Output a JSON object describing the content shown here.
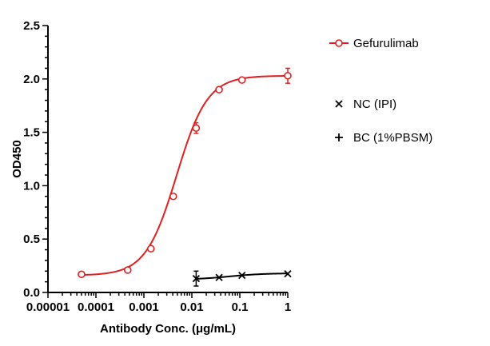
{
  "chart_data": {
    "type": "line",
    "xlabel": "Antibody Conc. (μg/mL)",
    "ylabel": "OD450",
    "x_scale": "log",
    "xlim": [
      1e-05,
      1
    ],
    "ylim": [
      0,
      2.5
    ],
    "x_ticks": [
      {
        "value": 1e-05,
        "label": "0.00001"
      },
      {
        "value": 0.0001,
        "label": "0.0001"
      },
      {
        "value": 0.001,
        "label": "0.001"
      },
      {
        "value": 0.01,
        "label": "0.01"
      },
      {
        "value": 0.1,
        "label": "0.1"
      },
      {
        "value": 1,
        "label": "1"
      }
    ],
    "y_ticks": [
      {
        "value": 0,
        "label": "0.0"
      },
      {
        "value": 0.5,
        "label": "0.5"
      },
      {
        "value": 1,
        "label": "1.0"
      },
      {
        "value": 1.5,
        "label": "1.5"
      },
      {
        "value": 2,
        "label": "2.0"
      },
      {
        "value": 2.5,
        "label": "2.5"
      }
    ],
    "grid": false,
    "legend_position": "right",
    "series": [
      {
        "name": "Gefurulimab",
        "color": "#e02020",
        "marker": "open-circle",
        "points": [
          {
            "x": 5e-05,
            "y": 0.17,
            "err": 0
          },
          {
            "x": 0.00046,
            "y": 0.21,
            "err": 0
          },
          {
            "x": 0.0014,
            "y": 0.41,
            "err": 0
          },
          {
            "x": 0.0041,
            "y": 0.9,
            "err": 0
          },
          {
            "x": 0.0123,
            "y": 1.54,
            "err": 0.05
          },
          {
            "x": 0.037,
            "y": 1.9,
            "err": 0
          },
          {
            "x": 0.111,
            "y": 1.99,
            "err": 0
          },
          {
            "x": 1.0,
            "y": 2.03,
            "err": 0.07
          }
        ],
        "fit": {
          "bottom": 0.16,
          "top": 2.03,
          "ec50": 0.0048,
          "hill": 1.35
        }
      },
      {
        "name": "NC (IPI)",
        "color": "#000000",
        "marker": "x",
        "points": [
          {
            "x": 0.0123,
            "y": 0.13,
            "err": 0.07
          },
          {
            "x": 0.037,
            "y": 0.14,
            "err": 0
          },
          {
            "x": 0.111,
            "y": 0.16,
            "err": 0
          },
          {
            "x": 1.0,
            "y": 0.175,
            "err": 0
          }
        ],
        "fit": {
          "bottom": 0.12,
          "top": 0.18,
          "ec50": 0.06,
          "hill": 1.2
        }
      },
      {
        "name": "BC (1%PBSM)",
        "color": "#000000",
        "marker": "plus",
        "points": []
      }
    ]
  }
}
